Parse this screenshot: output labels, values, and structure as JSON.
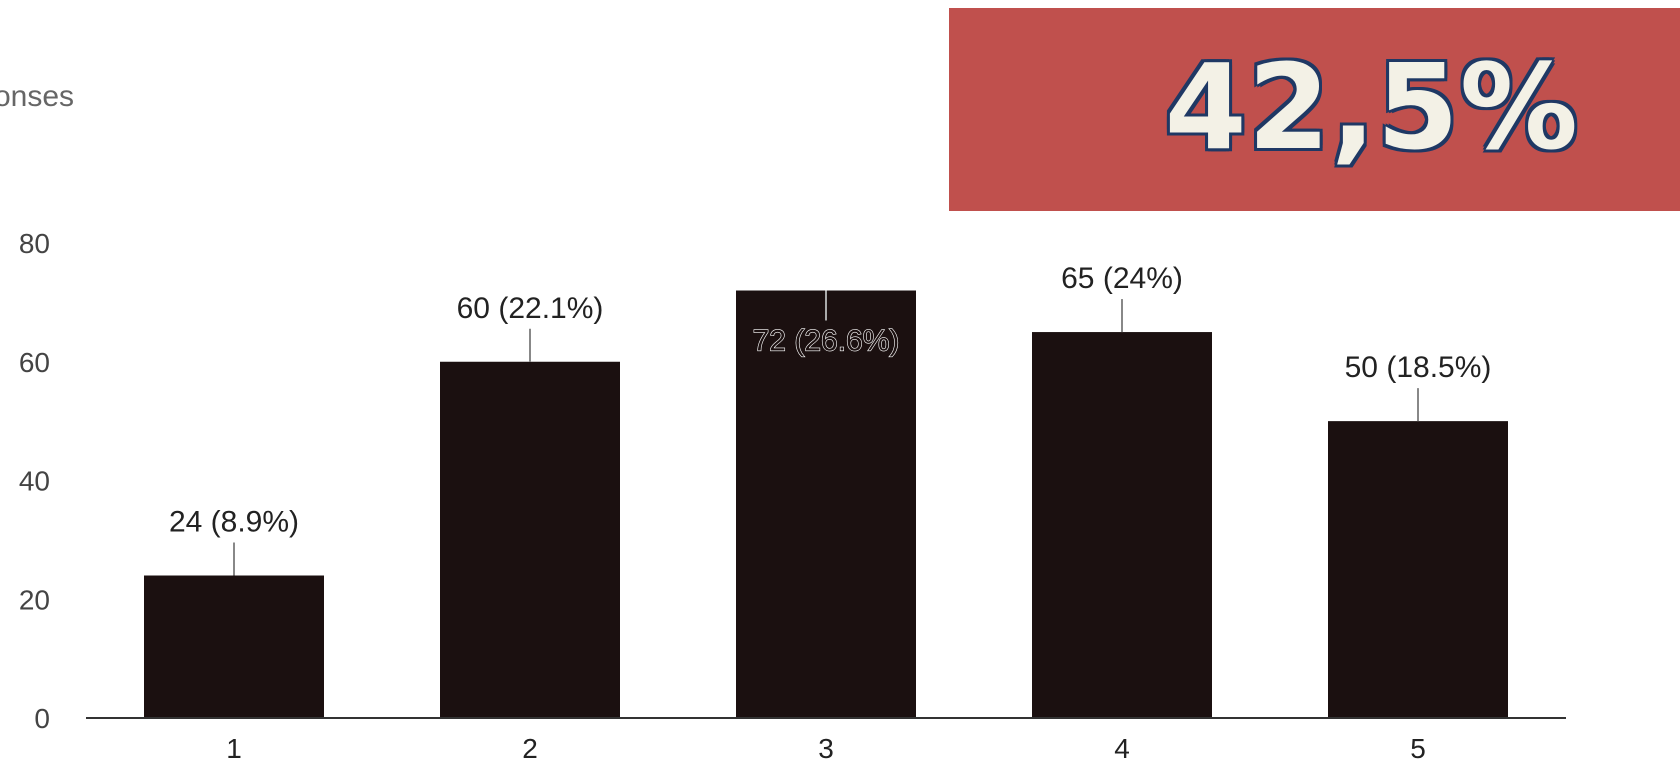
{
  "header": {
    "subtitle": "onses"
  },
  "banner": {
    "text": "42,5%",
    "background": "#c0504d",
    "text_color": "#f3f1e6",
    "outline_color": "#1f3864"
  },
  "chart_data": {
    "type": "bar",
    "categories": [
      "1",
      "2",
      "3",
      "4",
      "5"
    ],
    "values": [
      24,
      60,
      72,
      65,
      50
    ],
    "data_labels": [
      "24 (8.9%)",
      "60 (22.1%)",
      "72 (26.6%)",
      "65 (24%)",
      "50 (18.5%)"
    ],
    "yticks": [
      0,
      20,
      40,
      60,
      80
    ],
    "ylim": [
      0,
      80
    ],
    "title": "",
    "xlabel": "",
    "ylabel": "",
    "grid": false,
    "bar_color": "#1b1010"
  }
}
